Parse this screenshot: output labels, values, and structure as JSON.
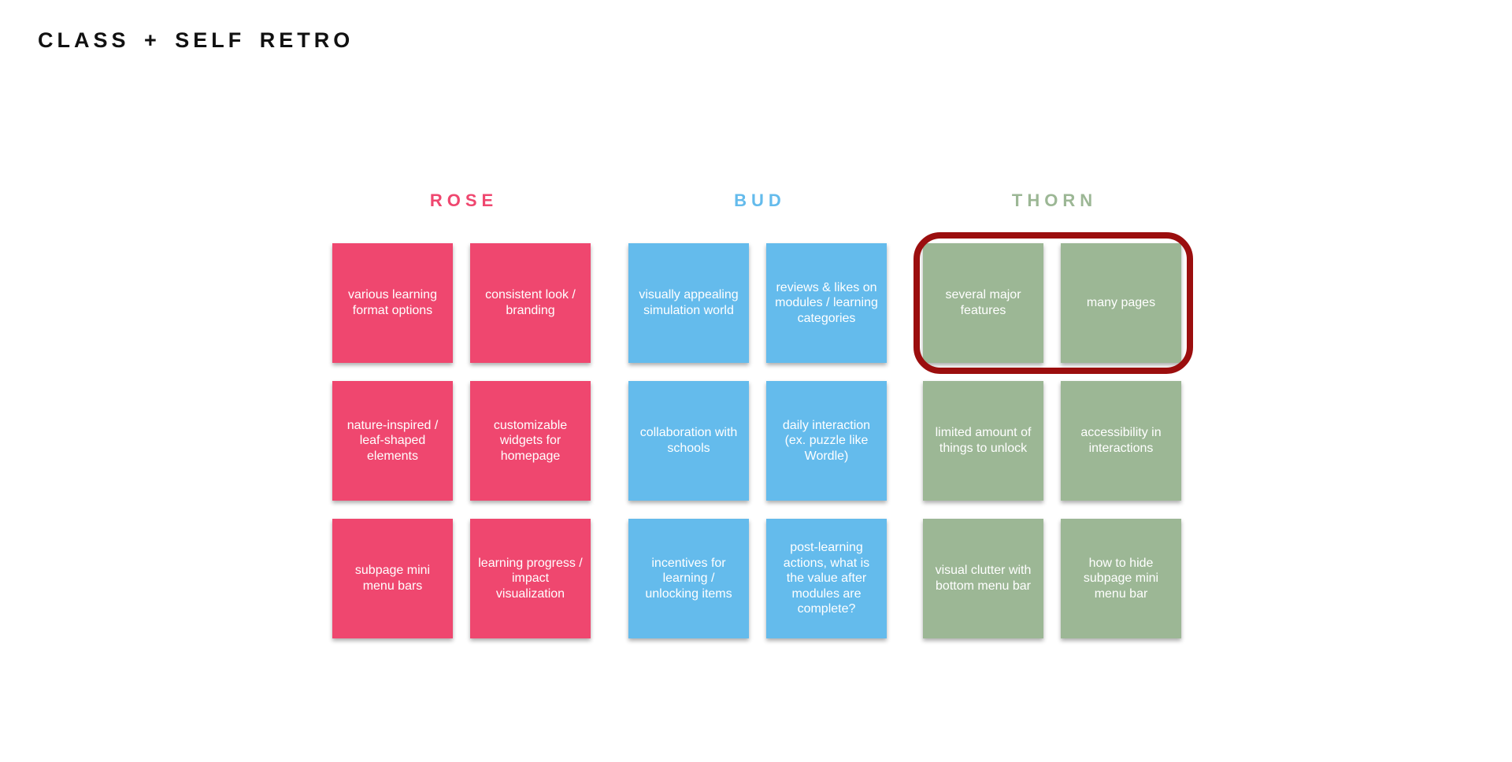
{
  "title": "CLASS + SELF RETRO",
  "colors": {
    "rose": "#EF476F",
    "bud": "#64BBEC",
    "thorn": "#9CB795",
    "highlight": "#9B0E0E",
    "title_text": "#111111"
  },
  "columns": [
    {
      "id": "rose",
      "label": "ROSE",
      "notes": [
        "various learning format options",
        "consistent look / branding",
        "nature-inspired / leaf-shaped elements",
        "customizable widgets for homepage",
        "subpage mini menu bars",
        "learning progress / impact visualization"
      ]
    },
    {
      "id": "bud",
      "label": "BUD",
      "notes": [
        "visually appealing simulation world",
        "reviews & likes on modules / learning categories",
        "collaboration with schools",
        "daily interaction (ex. puzzle like Wordle)",
        "incentives for learning / unlocking items",
        "post-learning actions, what is the value after modules are complete?"
      ]
    },
    {
      "id": "thorn",
      "label": "THORN",
      "notes": [
        "several major features",
        "many pages",
        "limited amount of things to unlock",
        "accessibility in interactions",
        "visual clutter with bottom menu bar",
        "how to hide subpage mini menu bar"
      ]
    }
  ],
  "highlight_annotation": {
    "shape": "rounded-rectangle-outline",
    "encircled_notes": [
      "several major features",
      "many pages"
    ]
  }
}
